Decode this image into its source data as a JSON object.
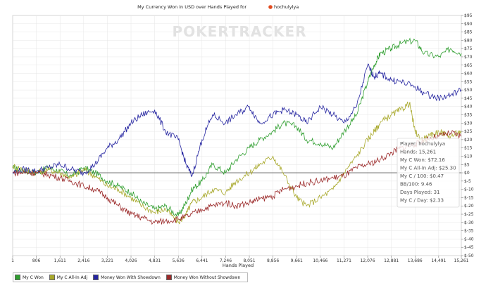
{
  "chart_data": {
    "type": "line",
    "title": "My Currency Won in USD over Hands Played for",
    "player_name": "hochulylya",
    "watermark": "POKERTRACKER",
    "xlabel": "Hands Played",
    "ylabel": "",
    "xlim": [
      1,
      15261
    ],
    "ylim": [
      -50,
      95
    ],
    "x_ticks": [
      1,
      806,
      1611,
      2416,
      3221,
      4026,
      4831,
      5636,
      6441,
      7246,
      8051,
      8856,
      9661,
      10466,
      11271,
      12076,
      12881,
      13686,
      14491,
      15261
    ],
    "x_tick_labels": [
      "1",
      "806",
      "1,611",
      "2,416",
      "3,221",
      "4,026",
      "4,831",
      "5,636",
      "6,441",
      "7,246",
      "8,051",
      "8,856",
      "9,661",
      "10,466",
      "11,271",
      "12,076",
      "12,881",
      "13,686",
      "14,491",
      "15,261"
    ],
    "y_ticks": [
      -50,
      -45,
      -40,
      -35,
      -30,
      -25,
      -20,
      -15,
      -10,
      -5,
      0,
      5,
      10,
      15,
      20,
      25,
      30,
      35,
      40,
      45,
      50,
      55,
      60,
      65,
      70,
      75,
      80,
      85,
      90,
      95
    ],
    "y_tick_labels": [
      "$-50",
      "$-45",
      "$-40",
      "$-35",
      "$-30",
      "$-25",
      "$-20",
      "$-15",
      "$-10",
      "$-5",
      "$0",
      "$5",
      "$10",
      "$15",
      "$20",
      "$25",
      "$30",
      "$35",
      "$40",
      "$45",
      "$50",
      "$55",
      "$60",
      "$65",
      "$70",
      "$75",
      "$80",
      "$85",
      "$90",
      "$95"
    ],
    "grid": true,
    "legend_position": "bottom-left",
    "series": [
      {
        "name": "My C Won",
        "color": "#2e9e2e",
        "x": [
          1,
          400,
          806,
          1200,
          1611,
          2000,
          2416,
          2800,
          3221,
          3600,
          4026,
          4400,
          4831,
          5200,
          5636,
          5900,
          6100,
          6441,
          6800,
          7246,
          7600,
          8051,
          8400,
          8856,
          9200,
          9661,
          10000,
          10466,
          10900,
          11271,
          11700,
          12076,
          12300,
          12500,
          12881,
          13200,
          13686,
          14000,
          14491,
          14900,
          15261
        ],
        "y": [
          3,
          1,
          0,
          3,
          1,
          -2,
          3,
          0,
          -5,
          -8,
          -12,
          -18,
          -22,
          -20,
          -26,
          -18,
          -10,
          -5,
          5,
          0,
          8,
          15,
          20,
          25,
          30,
          28,
          20,
          18,
          15,
          25,
          35,
          55,
          65,
          72,
          75,
          78,
          80,
          72,
          70,
          75,
          72.16
        ]
      },
      {
        "name": "My C All-In Adj",
        "color": "#a8a82a",
        "x": [
          1,
          400,
          806,
          1200,
          1611,
          2000,
          2416,
          2800,
          3221,
          3600,
          4026,
          4400,
          4831,
          5200,
          5636,
          5900,
          6100,
          6441,
          6800,
          7246,
          7600,
          8051,
          8400,
          8856,
          9200,
          9661,
          10000,
          10466,
          10900,
          11271,
          11700,
          12076,
          12300,
          12500,
          12881,
          13200,
          13500,
          13686,
          13900,
          14200,
          14491,
          14900,
          15261
        ],
        "y": [
          4,
          2,
          0,
          2,
          0,
          -3,
          2,
          -2,
          -8,
          -10,
          -15,
          -20,
          -24,
          -22,
          -30,
          -25,
          -18,
          -15,
          -10,
          -12,
          -5,
          0,
          5,
          10,
          0,
          -15,
          -20,
          -15,
          -10,
          0,
          10,
          20,
          25,
          30,
          35,
          38,
          42,
          25,
          20,
          22,
          25,
          22,
          25.3
        ]
      },
      {
        "name": "Money Won With Showdown",
        "color": "#2424a0",
        "x": [
          1,
          400,
          806,
          1200,
          1611,
          2000,
          2416,
          2800,
          3221,
          3600,
          4026,
          4400,
          4831,
          5200,
          5636,
          5900,
          6100,
          6441,
          6800,
          7246,
          7600,
          8051,
          8400,
          8856,
          9200,
          9661,
          10000,
          10466,
          10900,
          11271,
          11700,
          12076,
          12300,
          12500,
          12881,
          13200,
          13686,
          14000,
          14491,
          14900,
          15261
        ],
        "y": [
          0,
          2,
          1,
          3,
          5,
          2,
          0,
          5,
          15,
          20,
          30,
          35,
          38,
          25,
          20,
          5,
          -2,
          20,
          35,
          30,
          35,
          40,
          30,
          35,
          38,
          35,
          30,
          40,
          35,
          30,
          40,
          65,
          58,
          60,
          56,
          55,
          52,
          48,
          45,
          47,
          50
        ]
      },
      {
        "name": "Money Won Without Showdown",
        "color": "#9c2a2a",
        "x": [
          1,
          400,
          806,
          1200,
          1611,
          2000,
          2416,
          2800,
          3221,
          3600,
          4026,
          4400,
          4831,
          5200,
          5636,
          6000,
          6441,
          6800,
          7246,
          7600,
          8051,
          8400,
          8856,
          9200,
          9661,
          10000,
          10466,
          10900,
          11271,
          11700,
          12076,
          12500,
          12881,
          13200,
          13686,
          14000,
          14491,
          14900,
          15261
        ],
        "y": [
          0,
          0,
          0,
          -1,
          -3,
          -5,
          -8,
          -10,
          -15,
          -20,
          -25,
          -27,
          -30,
          -29,
          -28,
          -26,
          -22,
          -20,
          -18,
          -20,
          -18,
          -16,
          -14,
          -10,
          -8,
          -6,
          -5,
          -3,
          -2,
          3,
          5,
          8,
          12,
          15,
          17,
          20,
          22,
          24,
          22
        ]
      }
    ],
    "tooltip": {
      "lines": [
        "Player: hochulylya",
        "Hands: 15,261",
        "My C Won: $72.16",
        "My C All-In Adj: $25.30",
        "My C / 100: $0.47",
        "BB/100: 9.46",
        "Days Played: 31",
        "My C / Day: $2.33"
      ]
    }
  }
}
